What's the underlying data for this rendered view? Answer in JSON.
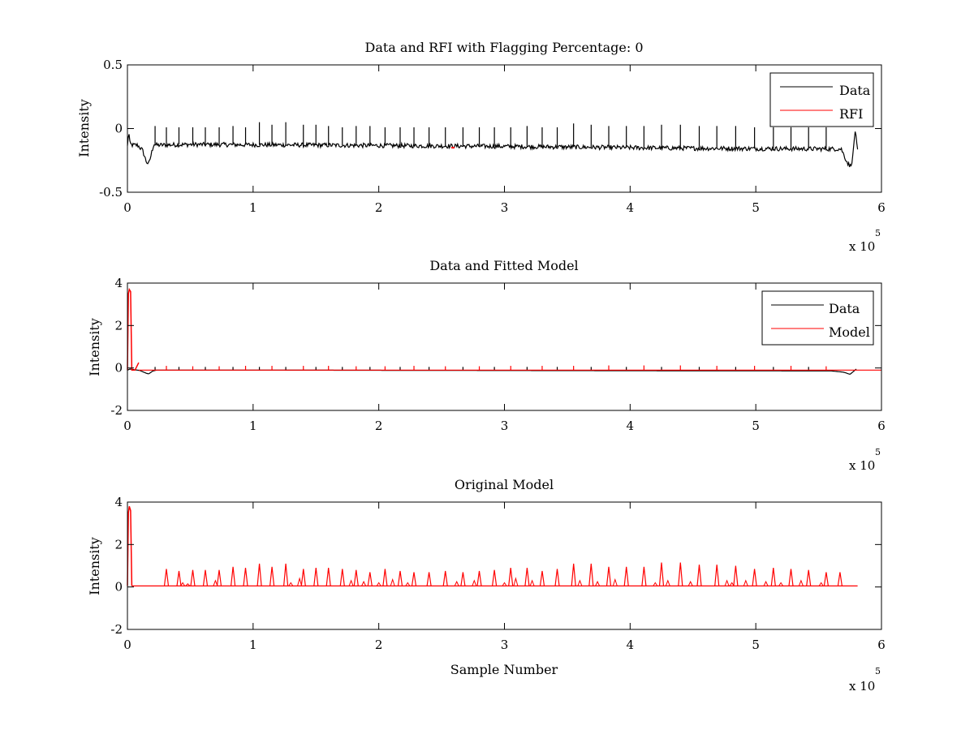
{
  "figure": {
    "background": "#ffffff"
  },
  "chart_data": [
    {
      "type": "line",
      "title": "Data and RFI with Flagging Percentage: 0",
      "xlabel": "",
      "ylabel": "Intensity",
      "xlim": [
        0,
        600000
      ],
      "ylim": [
        -0.5,
        0.5
      ],
      "x_ticks": [
        0,
        1,
        2,
        3,
        4,
        5,
        6
      ],
      "y_ticks": [
        "0.5",
        "0",
        "-0.5"
      ],
      "x_exponent_base": "x 10",
      "x_exponent_power": "5",
      "legend": {
        "placement": "top-right",
        "entries": [
          {
            "name": "Data",
            "color": "#000000"
          },
          {
            "name": "RFI",
            "color": "#ff0000"
          }
        ]
      },
      "grid": false,
      "series": [
        {
          "name": "Data",
          "color": "#000000",
          "baseline_x": [
            0,
            1000,
            2000,
            4000,
            8000,
            12000,
            15000,
            17000,
            19000,
            21000,
            23000,
            50000,
            150000,
            300000,
            450000,
            560000,
            568000,
            572000,
            575000,
            577000,
            579000,
            581000
          ],
          "baseline_y": [
            -0.14,
            -0.02,
            -0.12,
            -0.13,
            -0.13,
            -0.17,
            -0.26,
            -0.28,
            -0.2,
            -0.12,
            -0.13,
            -0.125,
            -0.13,
            -0.14,
            -0.155,
            -0.16,
            -0.16,
            -0.25,
            -0.3,
            -0.24,
            -0.01,
            -0.18
          ],
          "spikes_x": [
            22000,
            31000,
            41000,
            52000,
            62000,
            73000,
            84000,
            94000,
            105000,
            115000,
            126000,
            140000,
            150000,
            160000,
            171000,
            182000,
            193000,
            205000,
            217000,
            228000,
            240000,
            253000,
            267000,
            280000,
            292000,
            305000,
            318000,
            330000,
            342000,
            355000,
            369000,
            383000,
            397000,
            411000,
            425000,
            440000,
            455000,
            469000,
            484000,
            499000,
            514000,
            528000,
            542000,
            556000
          ],
          "spikes_top": [
            0.02,
            0.01,
            0.01,
            0.01,
            0.01,
            0.01,
            0.02,
            0.01,
            0.05,
            0.03,
            0.05,
            0.03,
            0.03,
            0.02,
            0.01,
            0.02,
            0.02,
            0.01,
            0.01,
            0.01,
            0.01,
            0.01,
            0.01,
            0.01,
            0.01,
            0.01,
            0.02,
            0.01,
            0.01,
            0.04,
            0.03,
            0.02,
            0.02,
            0.02,
            0.03,
            0.03,
            0.02,
            0.02,
            0.02,
            0.01,
            0.01,
            0.01,
            0.01,
            0.01
          ]
        },
        {
          "name": "RFI",
          "color": "#ff0000",
          "points_x": [
            259000
          ],
          "points_y": [
            -0.15
          ]
        }
      ]
    },
    {
      "type": "line",
      "title": "Data and Fitted Model",
      "xlabel": "",
      "ylabel": "Intensity",
      "xlim": [
        0,
        600000
      ],
      "ylim": [
        -2,
        4
      ],
      "x_ticks": [
        0,
        1,
        2,
        3,
        4,
        5,
        6
      ],
      "y_ticks": [
        "4",
        "2",
        "0",
        "-2"
      ],
      "x_exponent_base": "x 10",
      "x_exponent_power": "5",
      "legend": {
        "placement": "top-right",
        "entries": [
          {
            "name": "Data",
            "color": "#000000"
          },
          {
            "name": "Model",
            "color": "#ff0000"
          }
        ]
      },
      "grid": false,
      "series": [
        {
          "name": "Data",
          "color": "#000000",
          "baseline_x": [
            0,
            2000,
            10000,
            15000,
            17000,
            20000,
            23000,
            100000,
            300000,
            560000,
            570000,
            575000,
            580000
          ],
          "baseline_y": [
            -0.1,
            -0.05,
            -0.12,
            -0.25,
            -0.28,
            -0.15,
            -0.1,
            -0.1,
            -0.12,
            -0.14,
            -0.2,
            -0.3,
            -0.05
          ],
          "spikes_x": [
            22000,
            41000,
            62000,
            84000,
            105000,
            126000,
            150000,
            171000,
            193000,
            217000,
            240000,
            267000,
            292000,
            318000,
            342000,
            369000,
            397000,
            425000,
            455000,
            484000,
            514000,
            542000
          ],
          "spikes_top": [
            0.05,
            0.05,
            0.05,
            0.05,
            0.05,
            0.05,
            0.05,
            0.05,
            0.05,
            0.05,
            0.05,
            0.05,
            0.05,
            0.05,
            0.05,
            0.05,
            0.05,
            0.05,
            0.05,
            0.05,
            0.05,
            0.05
          ]
        },
        {
          "name": "Model",
          "color": "#ff0000",
          "start_x": [
            0,
            800,
            1500,
            2500,
            3500,
            6000,
            9000
          ],
          "start_y": [
            -0.1,
            3.5,
            3.7,
            3.6,
            -0.1,
            -0.1,
            0.25
          ],
          "baseline_x": [
            9000,
            600000
          ],
          "baseline_y": [
            -0.1,
            -0.1
          ],
          "spikes_x": [
            31000,
            52000,
            73000,
            94000,
            115000,
            140000,
            160000,
            182000,
            205000,
            228000,
            253000,
            280000,
            305000,
            330000,
            355000,
            383000,
            411000,
            440000,
            469000,
            499000,
            528000,
            556000
          ],
          "spikes_top": [
            0.1,
            0.08,
            0.08,
            0.1,
            0.1,
            0.1,
            0.1,
            0.08,
            0.08,
            0.1,
            0.08,
            0.08,
            0.1,
            0.1,
            0.1,
            0.12,
            0.12,
            0.12,
            0.1,
            0.1,
            0.1,
            0.08
          ]
        }
      ]
    },
    {
      "type": "line",
      "title": "Original Model",
      "xlabel": "Sample Number",
      "ylabel": "Intensity",
      "xlim": [
        0,
        600000
      ],
      "ylim": [
        -2,
        4
      ],
      "x_ticks": [
        0,
        1,
        2,
        3,
        4,
        5,
        6
      ],
      "y_ticks": [
        "4",
        "2",
        "0",
        "-2"
      ],
      "x_exponent_base": "x 10",
      "x_exponent_power": "5",
      "grid": false,
      "series": [
        {
          "name": "",
          "color": "#ff0000",
          "start_x": [
            0,
            800,
            1500,
            2500,
            3500
          ],
          "start_y": [
            0.05,
            3.5,
            3.8,
            3.6,
            0.05
          ],
          "baseline_x": [
            3500,
            581000
          ],
          "baseline_y": [
            0.05,
            0.05
          ],
          "spikes_x": [
            31000,
            41000,
            52000,
            62000,
            73000,
            84000,
            94000,
            105000,
            115000,
            126000,
            140000,
            150000,
            160000,
            171000,
            182000,
            193000,
            205000,
            217000,
            228000,
            240000,
            253000,
            267000,
            280000,
            292000,
            305000,
            318000,
            330000,
            342000,
            355000,
            369000,
            383000,
            397000,
            411000,
            425000,
            440000,
            455000,
            469000,
            484000,
            499000,
            514000,
            528000,
            542000,
            556000,
            567000
          ],
          "spikes_top": [
            0.85,
            0.75,
            0.8,
            0.8,
            0.8,
            0.95,
            0.9,
            1.1,
            0.95,
            1.1,
            0.85,
            0.9,
            0.9,
            0.85,
            0.8,
            0.7,
            0.85,
            0.75,
            0.7,
            0.7,
            0.75,
            0.7,
            0.75,
            0.8,
            0.9,
            0.9,
            0.75,
            0.85,
            1.1,
            1.1,
            0.95,
            0.95,
            0.95,
            1.15,
            1.15,
            1.05,
            1.05,
            1.0,
            0.85,
            0.9,
            0.85,
            0.8,
            0.7,
            0.7
          ],
          "secondary_x": [
            44000,
            48000,
            70000,
            130000,
            137000,
            178000,
            188000,
            200000,
            211000,
            223000,
            262000,
            276000,
            300000,
            309000,
            322000,
            360000,
            374000,
            388000,
            420000,
            430000,
            448000,
            477000,
            481000,
            492000,
            508000,
            520000,
            536000,
            552000
          ],
          "secondary_top": [
            0.2,
            0.15,
            0.3,
            0.2,
            0.4,
            0.3,
            0.25,
            0.2,
            0.35,
            0.2,
            0.25,
            0.3,
            0.2,
            0.4,
            0.3,
            0.3,
            0.25,
            0.35,
            0.2,
            0.3,
            0.25,
            0.3,
            0.2,
            0.3,
            0.25,
            0.2,
            0.3,
            0.2
          ]
        }
      ]
    }
  ]
}
